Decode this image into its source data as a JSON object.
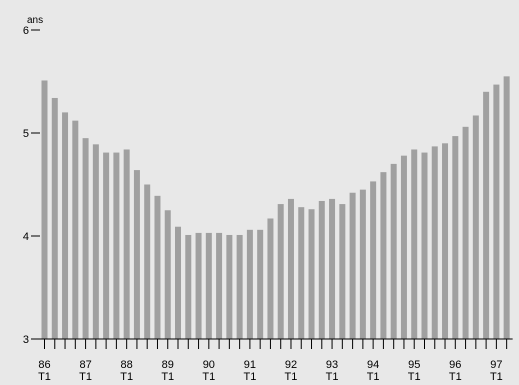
{
  "chart_data": {
    "type": "bar",
    "title": "",
    "xlabel": "",
    "ylabel": "ans",
    "ylim": [
      3,
      6
    ],
    "yticks": [
      3,
      4,
      5,
      6
    ],
    "grid": false,
    "bar_color": "#a0a0a0",
    "background": "#e8e8e8",
    "x_tick_labels": [
      {
        "year": "86",
        "quarter": "T1"
      },
      {
        "year": "87",
        "quarter": "T1"
      },
      {
        "year": "88",
        "quarter": "T1"
      },
      {
        "year": "89",
        "quarter": "T1"
      },
      {
        "year": "90",
        "quarter": "T1"
      },
      {
        "year": "91",
        "quarter": "T1"
      },
      {
        "year": "92",
        "quarter": "T1"
      },
      {
        "year": "93",
        "quarter": "T1"
      },
      {
        "year": "94",
        "quarter": "T1"
      },
      {
        "year": "95",
        "quarter": "T1"
      },
      {
        "year": "96",
        "quarter": "T1"
      },
      {
        "year": "97",
        "quarter": "T1"
      }
    ],
    "categories": [
      "86T1",
      "86T2",
      "86T3",
      "86T4",
      "87T1",
      "87T2",
      "87T3",
      "87T4",
      "88T1",
      "88T2",
      "88T3",
      "88T4",
      "89T1",
      "89T2",
      "89T3",
      "89T4",
      "90T1",
      "90T2",
      "90T3",
      "90T4",
      "91T1",
      "91T2",
      "91T3",
      "91T4",
      "92T1",
      "92T2",
      "92T3",
      "92T4",
      "93T1",
      "93T2",
      "93T3",
      "93T4",
      "94T1",
      "94T2",
      "94T3",
      "94T4",
      "95T1",
      "95T2",
      "95T3",
      "95T4",
      "96T1",
      "96T2",
      "96T3",
      "96T4",
      "97T1",
      "97T2"
    ],
    "values": [
      5.51,
      5.34,
      5.2,
      5.12,
      4.95,
      4.89,
      4.81,
      4.81,
      4.84,
      4.64,
      4.5,
      4.39,
      4.25,
      4.09,
      4.01,
      4.03,
      4.03,
      4.03,
      4.01,
      4.01,
      4.06,
      4.06,
      4.17,
      4.31,
      4.36,
      4.28,
      4.26,
      4.34,
      4.36,
      4.31,
      4.42,
      4.45,
      4.53,
      4.62,
      4.7,
      4.78,
      4.84,
      4.81,
      4.87,
      4.9,
      4.97,
      5.06,
      5.17,
      5.4,
      5.47,
      5.55
    ]
  }
}
